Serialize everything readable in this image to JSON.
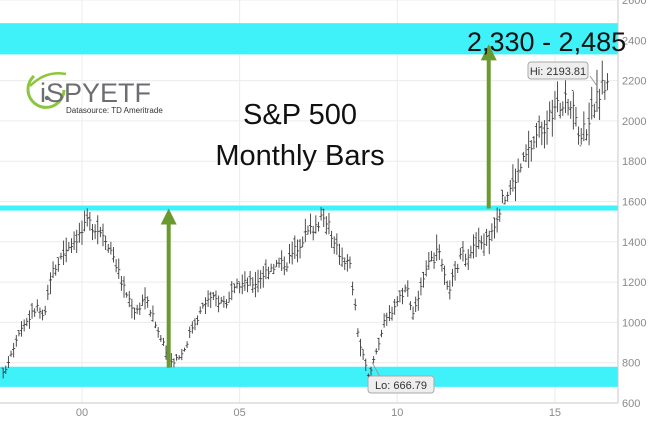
{
  "chart_data": {
    "type": "candlestick",
    "title": "S&P 500",
    "subtitle": "Monthly Bars",
    "target_label": "2,330 - 2,485",
    "high_label": "Hi: 2193.81",
    "low_label": "Lo: 666.79",
    "xlim": [
      1997.4,
      2017.0
    ],
    "ylim": [
      600,
      2600
    ],
    "x_ticks": [
      {
        "value": 2000,
        "label": "00"
      },
      {
        "value": 2005,
        "label": "05"
      },
      {
        "value": 2010,
        "label": "10"
      },
      {
        "value": 2015,
        "label": "15"
      }
    ],
    "y_ticks": [
      600,
      800,
      1000,
      1200,
      1400,
      1600,
      1800,
      2000,
      2200,
      2400,
      2600
    ],
    "zones": [
      {
        "from": 2330,
        "to": 2485,
        "color": "#3ff1f9"
      },
      {
        "from": 1555,
        "to": 1580,
        "color": "#3ff1f9"
      },
      {
        "from": 680,
        "to": 780,
        "color": "#3ff1f9"
      }
    ],
    "arrows": [
      {
        "x": 2002.75,
        "from": 775,
        "to": 1565,
        "color": "#6a9a2e"
      },
      {
        "x": 2012.9,
        "from": 1565,
        "to": 2380,
        "color": "#6a9a2e"
      }
    ],
    "series_anchors": [
      [
        1997.5,
        740
      ],
      [
        1998.0,
        960
      ],
      [
        1998.6,
        1080
      ],
      [
        1998.8,
        1000
      ],
      [
        1999.0,
        1230
      ],
      [
        1999.5,
        1370
      ],
      [
        2000.0,
        1450
      ],
      [
        2000.2,
        1500
      ],
      [
        2000.7,
        1440
      ],
      [
        2001.0,
        1330
      ],
      [
        2001.3,
        1180
      ],
      [
        2001.7,
        1050
      ],
      [
        2002.0,
        1130
      ],
      [
        2002.5,
        920
      ],
      [
        2002.8,
        800
      ],
      [
        2003.2,
        850
      ],
      [
        2003.5,
        980
      ],
      [
        2004.0,
        1120
      ],
      [
        2004.6,
        1100
      ],
      [
        2005.0,
        1190
      ],
      [
        2005.5,
        1200
      ],
      [
        2006.0,
        1280
      ],
      [
        2006.5,
        1300
      ],
      [
        2007.0,
        1420
      ],
      [
        2007.5,
        1500
      ],
      [
        2007.8,
        1520
      ],
      [
        2008.0,
        1380
      ],
      [
        2008.5,
        1280
      ],
      [
        2008.8,
        900
      ],
      [
        2009.1,
        720
      ],
      [
        2009.3,
        850
      ],
      [
        2009.6,
        1000
      ],
      [
        2010.0,
        1110
      ],
      [
        2010.3,
        1180
      ],
      [
        2010.5,
        1050
      ],
      [
        2011.0,
        1280
      ],
      [
        2011.3,
        1350
      ],
      [
        2011.6,
        1150
      ],
      [
        2012.0,
        1320
      ],
      [
        2012.5,
        1380
      ],
      [
        2012.9,
        1420
      ],
      [
        2013.3,
        1590
      ],
      [
        2013.7,
        1700
      ],
      [
        2014.0,
        1800
      ],
      [
        2014.5,
        1950
      ],
      [
        2014.8,
        2000
      ],
      [
        2015.0,
        2060
      ],
      [
        2015.4,
        2100
      ],
      [
        2015.6,
        2090
      ],
      [
        2015.7,
        1930
      ],
      [
        2016.0,
        1970
      ],
      [
        2016.2,
        2060
      ],
      [
        2016.5,
        2170
      ],
      [
        2016.7,
        2180
      ]
    ]
  },
  "logo": {
    "brand": "iSPYETF",
    "datasource": "Datasource: TD Ameritrade",
    "icon": "swoosh-circle-icon",
    "colors": {
      "green": "#8cc63f",
      "gray": "#6d6e71",
      "dark": "#333333"
    }
  }
}
